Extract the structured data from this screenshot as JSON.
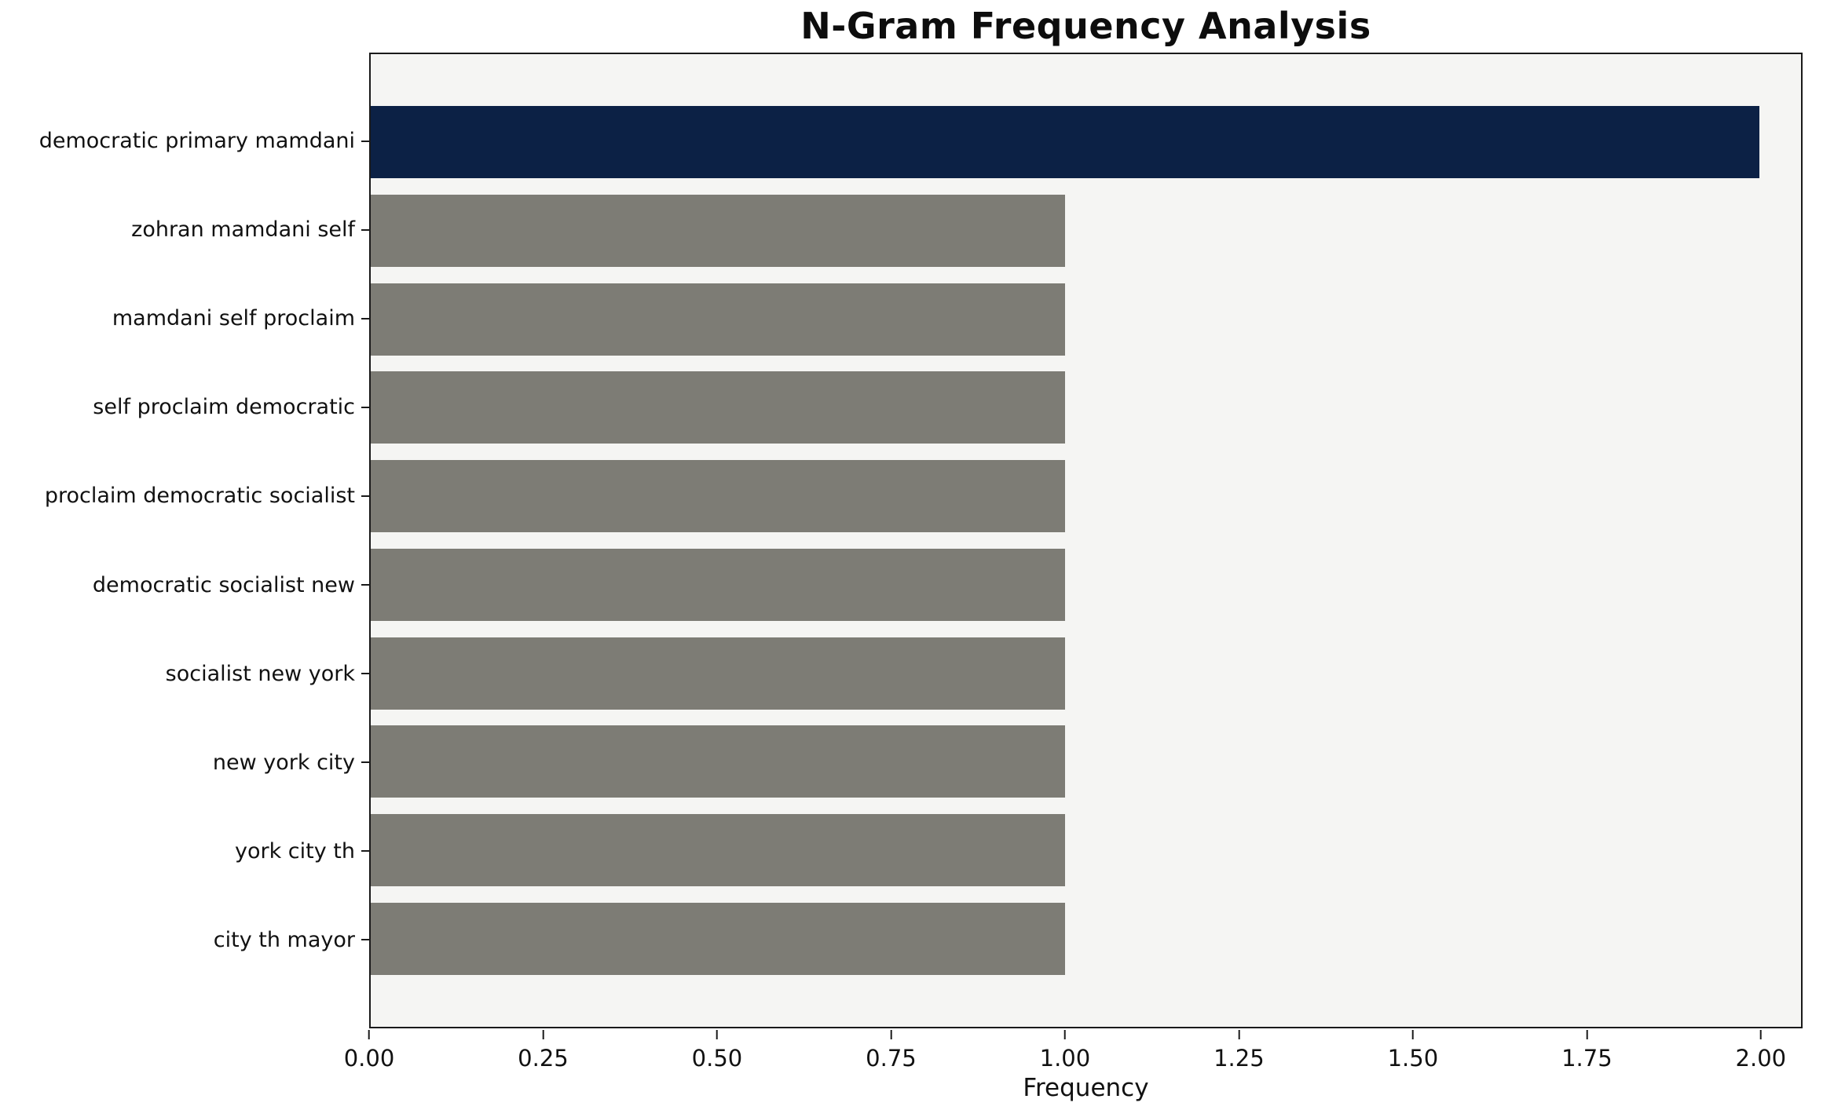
{
  "chart_data": {
    "type": "bar",
    "orientation": "horizontal",
    "title": "N-Gram Frequency Analysis",
    "xlabel": "Frequency",
    "ylabel": "",
    "categories": [
      "democratic primary mamdani",
      "zohran mamdani self",
      "mamdani self proclaim",
      "self proclaim democratic",
      "proclaim democratic socialist",
      "democratic socialist new",
      "socialist new york",
      "new york city",
      "york city th",
      "city th mayor"
    ],
    "values": [
      2,
      1,
      1,
      1,
      1,
      1,
      1,
      1,
      1,
      1
    ],
    "bar_colors": [
      "#0c2145",
      "#7d7c75",
      "#7d7c75",
      "#7d7c75",
      "#7d7c75",
      "#7d7c75",
      "#7d7c75",
      "#7d7c75",
      "#7d7c75",
      "#7d7c75"
    ],
    "highlight_color": "#0c2145",
    "default_bar_color": "#7d7c75",
    "plot_background": "#f5f5f3",
    "xlim": [
      0,
      2.06
    ],
    "xticks": [
      0,
      0.25,
      0.5,
      0.75,
      1.0,
      1.25,
      1.5,
      1.75,
      2.0
    ],
    "xtick_labels": [
      "0.00",
      "0.25",
      "0.50",
      "0.75",
      "1.00",
      "1.25",
      "1.50",
      "1.75",
      "2.00"
    ],
    "grid": false,
    "legend": false
  }
}
